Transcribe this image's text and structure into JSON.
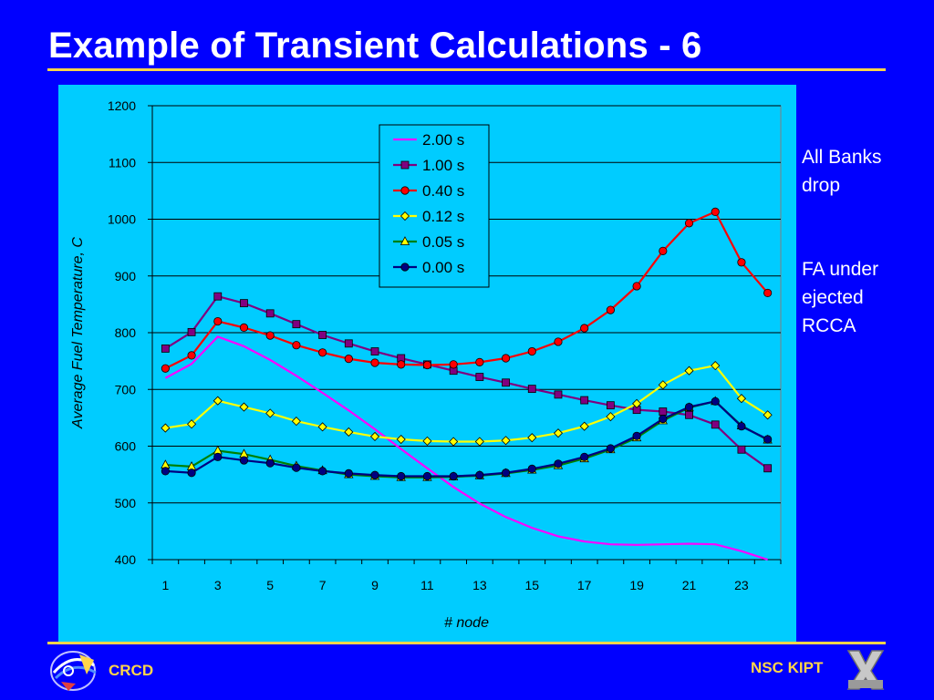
{
  "slide": {
    "title": "Example of Transient Calculations - 6",
    "side_note_1": "All Banks drop",
    "side_note_2": "FA under ejected RCCA",
    "footer_left": "CRCD",
    "footer_right": "NSC KIPT",
    "colors": {
      "background": "#0000ff",
      "accent": "#ffd54a",
      "plot_area": "#00ccff"
    },
    "icons": {
      "left_logo": "crcd-logo-icon",
      "right_logo": "kipt-logo-icon"
    }
  },
  "chart_data": {
    "type": "line",
    "title": "",
    "xlabel": "# node",
    "ylabel": "Average Fuel Temperature, C",
    "xlim": [
      0.5,
      24.5
    ],
    "ylim": [
      400,
      1200
    ],
    "x_ticks": [
      1,
      3,
      5,
      7,
      9,
      11,
      13,
      15,
      17,
      19,
      21,
      23
    ],
    "y_ticks": [
      400,
      500,
      600,
      700,
      800,
      900,
      1000,
      1100,
      1200
    ],
    "grid": "horizontal",
    "legend_position": "top-center",
    "x": [
      1,
      2,
      3,
      4,
      5,
      6,
      7,
      8,
      9,
      10,
      11,
      12,
      13,
      14,
      15,
      16,
      17,
      18,
      19,
      20,
      21,
      22,
      23,
      24
    ],
    "series": [
      {
        "name": "2.00 s",
        "color": "#ff00ff",
        "marker": "none",
        "values": [
          720,
          745,
          793,
          776,
          752,
          724,
          694,
          663,
          630,
          595,
          561,
          528,
          499,
          475,
          456,
          441,
          432,
          427,
          426,
          427,
          428,
          427,
          415,
          400
        ]
      },
      {
        "name": "1.00 s",
        "color": "#800080",
        "marker": "square",
        "values": [
          772,
          801,
          864,
          852,
          834,
          815,
          796,
          781,
          767,
          755,
          744,
          733,
          722,
          712,
          701,
          691,
          681,
          672,
          664,
          661,
          655,
          638,
          594,
          561
        ]
      },
      {
        "name": "0.40 s",
        "color": "#ff0000",
        "marker": "circle",
        "values": [
          737,
          760,
          820,
          809,
          795,
          778,
          765,
          754,
          747,
          744,
          743,
          744,
          748,
          755,
          767,
          784,
          808,
          840,
          882,
          944,
          993,
          1013,
          924,
          870
        ]
      },
      {
        "name": "0.12 s",
        "color": "#ffff00",
        "marker": "diamond",
        "values": [
          632,
          639,
          680,
          669,
          658,
          644,
          634,
          625,
          617,
          612,
          609,
          608,
          608,
          610,
          615,
          623,
          635,
          652,
          675,
          708,
          733,
          742,
          684,
          655
        ]
      },
      {
        "name": "0.05 s",
        "color": "#008000",
        "marker": "triangle",
        "values": [
          567,
          564,
          592,
          586,
          576,
          565,
          557,
          550,
          547,
          545,
          545,
          546,
          548,
          552,
          558,
          566,
          578,
          594,
          615,
          645,
          668,
          679,
          636,
          611
        ]
      },
      {
        "name": "0.00 s",
        "color": "#000080",
        "marker": "circle",
        "values": [
          556,
          553,
          581,
          575,
          570,
          562,
          556,
          552,
          549,
          547,
          547,
          547,
          549,
          553,
          560,
          569,
          581,
          596,
          618,
          648,
          669,
          679,
          635,
          612
        ]
      }
    ]
  }
}
